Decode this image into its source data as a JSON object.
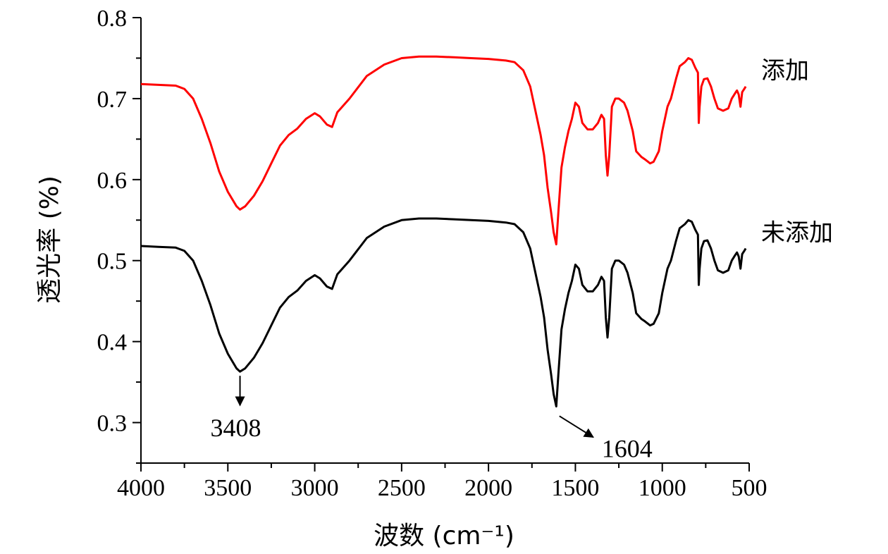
{
  "chart_data": {
    "type": "line",
    "title": "",
    "xlabel": "波数 (cm⁻¹)",
    "ylabel": "透光率 (%)",
    "xlim": [
      4000,
      500
    ],
    "ylim": [
      0.25,
      0.8
    ],
    "x_reversed": true,
    "grid": false,
    "legend": "inline-right",
    "x_ticks": [
      "4000",
      "3500",
      "3000",
      "2500",
      "2000",
      "1500",
      "1000",
      "500"
    ],
    "x_tick_values": [
      4000,
      3500,
      3000,
      2500,
      2000,
      1500,
      1000,
      500
    ],
    "y_ticks": [
      "0.3",
      "0.4",
      "0.5",
      "0.6",
      "0.7",
      "0.8"
    ],
    "y_tick_values": [
      0.3,
      0.4,
      0.5,
      0.6,
      0.7,
      0.8
    ],
    "series": [
      {
        "name": "添加",
        "color": "#ff0000",
        "points": [
          [
            4000,
            0.718
          ],
          [
            3900,
            0.717
          ],
          [
            3800,
            0.716
          ],
          [
            3750,
            0.712
          ],
          [
            3700,
            0.7
          ],
          [
            3650,
            0.675
          ],
          [
            3600,
            0.645
          ],
          [
            3550,
            0.61
          ],
          [
            3500,
            0.585
          ],
          [
            3450,
            0.567
          ],
          [
            3430,
            0.563
          ],
          [
            3400,
            0.567
          ],
          [
            3350,
            0.58
          ],
          [
            3300,
            0.598
          ],
          [
            3250,
            0.62
          ],
          [
            3200,
            0.642
          ],
          [
            3150,
            0.655
          ],
          [
            3100,
            0.663
          ],
          [
            3050,
            0.675
          ],
          [
            3000,
            0.682
          ],
          [
            2970,
            0.678
          ],
          [
            2930,
            0.668
          ],
          [
            2900,
            0.665
          ],
          [
            2870,
            0.683
          ],
          [
            2800,
            0.7
          ],
          [
            2700,
            0.728
          ],
          [
            2600,
            0.742
          ],
          [
            2500,
            0.75
          ],
          [
            2400,
            0.752
          ],
          [
            2300,
            0.752
          ],
          [
            2200,
            0.751
          ],
          [
            2100,
            0.75
          ],
          [
            2000,
            0.749
          ],
          [
            1900,
            0.747
          ],
          [
            1850,
            0.745
          ],
          [
            1800,
            0.735
          ],
          [
            1760,
            0.715
          ],
          [
            1730,
            0.685
          ],
          [
            1700,
            0.655
          ],
          [
            1680,
            0.63
          ],
          [
            1660,
            0.59
          ],
          [
            1640,
            0.56
          ],
          [
            1625,
            0.535
          ],
          [
            1610,
            0.52
          ],
          [
            1598,
            0.56
          ],
          [
            1580,
            0.615
          ],
          [
            1560,
            0.64
          ],
          [
            1540,
            0.66
          ],
          [
            1520,
            0.675
          ],
          [
            1500,
            0.695
          ],
          [
            1480,
            0.69
          ],
          [
            1460,
            0.67
          ],
          [
            1430,
            0.662
          ],
          [
            1400,
            0.662
          ],
          [
            1370,
            0.67
          ],
          [
            1350,
            0.68
          ],
          [
            1335,
            0.675
          ],
          [
            1325,
            0.63
          ],
          [
            1315,
            0.605
          ],
          [
            1305,
            0.63
          ],
          [
            1290,
            0.69
          ],
          [
            1270,
            0.7
          ],
          [
            1250,
            0.7
          ],
          [
            1220,
            0.695
          ],
          [
            1200,
            0.685
          ],
          [
            1170,
            0.66
          ],
          [
            1150,
            0.635
          ],
          [
            1120,
            0.628
          ],
          [
            1100,
            0.625
          ],
          [
            1070,
            0.62
          ],
          [
            1050,
            0.622
          ],
          [
            1020,
            0.635
          ],
          [
            1000,
            0.66
          ],
          [
            970,
            0.69
          ],
          [
            950,
            0.7
          ],
          [
            920,
            0.725
          ],
          [
            900,
            0.74
          ],
          [
            870,
            0.745
          ],
          [
            850,
            0.75
          ],
          [
            830,
            0.748
          ],
          [
            810,
            0.738
          ],
          [
            795,
            0.732
          ],
          [
            790,
            0.67
          ],
          [
            785,
            0.69
          ],
          [
            775,
            0.715
          ],
          [
            760,
            0.724
          ],
          [
            740,
            0.725
          ],
          [
            720,
            0.715
          ],
          [
            700,
            0.7
          ],
          [
            680,
            0.688
          ],
          [
            650,
            0.685
          ],
          [
            620,
            0.688
          ],
          [
            600,
            0.7
          ],
          [
            580,
            0.707
          ],
          [
            570,
            0.71
          ],
          [
            560,
            0.705
          ],
          [
            550,
            0.69
          ],
          [
            540,
            0.708
          ],
          [
            525,
            0.713
          ],
          [
            520,
            0.715
          ]
        ]
      },
      {
        "name": "未添加",
        "color": "#000000",
        "points": [
          [
            4000,
            0.518
          ],
          [
            3900,
            0.517
          ],
          [
            3800,
            0.516
          ],
          [
            3750,
            0.512
          ],
          [
            3700,
            0.5
          ],
          [
            3650,
            0.475
          ],
          [
            3600,
            0.445
          ],
          [
            3550,
            0.41
          ],
          [
            3500,
            0.385
          ],
          [
            3450,
            0.367
          ],
          [
            3430,
            0.363
          ],
          [
            3400,
            0.367
          ],
          [
            3350,
            0.38
          ],
          [
            3300,
            0.398
          ],
          [
            3250,
            0.42
          ],
          [
            3200,
            0.442
          ],
          [
            3150,
            0.455
          ],
          [
            3100,
            0.463
          ],
          [
            3050,
            0.475
          ],
          [
            3000,
            0.482
          ],
          [
            2970,
            0.478
          ],
          [
            2930,
            0.468
          ],
          [
            2900,
            0.465
          ],
          [
            2870,
            0.483
          ],
          [
            2800,
            0.5
          ],
          [
            2700,
            0.528
          ],
          [
            2600,
            0.542
          ],
          [
            2500,
            0.55
          ],
          [
            2400,
            0.552
          ],
          [
            2300,
            0.552
          ],
          [
            2200,
            0.551
          ],
          [
            2100,
            0.55
          ],
          [
            2000,
            0.549
          ],
          [
            1900,
            0.547
          ],
          [
            1850,
            0.545
          ],
          [
            1800,
            0.535
          ],
          [
            1760,
            0.515
          ],
          [
            1730,
            0.485
          ],
          [
            1700,
            0.455
          ],
          [
            1680,
            0.43
          ],
          [
            1660,
            0.39
          ],
          [
            1640,
            0.36
          ],
          [
            1625,
            0.335
          ],
          [
            1610,
            0.32
          ],
          [
            1598,
            0.36
          ],
          [
            1580,
            0.415
          ],
          [
            1560,
            0.44
          ],
          [
            1540,
            0.46
          ],
          [
            1520,
            0.475
          ],
          [
            1500,
            0.495
          ],
          [
            1480,
            0.49
          ],
          [
            1460,
            0.47
          ],
          [
            1430,
            0.462
          ],
          [
            1400,
            0.462
          ],
          [
            1370,
            0.47
          ],
          [
            1350,
            0.48
          ],
          [
            1335,
            0.475
          ],
          [
            1325,
            0.43
          ],
          [
            1315,
            0.405
          ],
          [
            1305,
            0.43
          ],
          [
            1290,
            0.49
          ],
          [
            1270,
            0.5
          ],
          [
            1250,
            0.5
          ],
          [
            1220,
            0.495
          ],
          [
            1200,
            0.485
          ],
          [
            1170,
            0.46
          ],
          [
            1150,
            0.435
          ],
          [
            1120,
            0.428
          ],
          [
            1100,
            0.425
          ],
          [
            1070,
            0.42
          ],
          [
            1050,
            0.422
          ],
          [
            1020,
            0.435
          ],
          [
            1000,
            0.46
          ],
          [
            970,
            0.49
          ],
          [
            950,
            0.5
          ],
          [
            920,
            0.525
          ],
          [
            900,
            0.54
          ],
          [
            870,
            0.545
          ],
          [
            850,
            0.55
          ],
          [
            830,
            0.548
          ],
          [
            810,
            0.538
          ],
          [
            795,
            0.532
          ],
          [
            790,
            0.47
          ],
          [
            785,
            0.49
          ],
          [
            775,
            0.515
          ],
          [
            760,
            0.524
          ],
          [
            740,
            0.525
          ],
          [
            720,
            0.515
          ],
          [
            700,
            0.5
          ],
          [
            680,
            0.488
          ],
          [
            650,
            0.485
          ],
          [
            620,
            0.488
          ],
          [
            600,
            0.5
          ],
          [
            580,
            0.507
          ],
          [
            570,
            0.51
          ],
          [
            560,
            0.505
          ],
          [
            550,
            0.49
          ],
          [
            540,
            0.508
          ],
          [
            525,
            0.513
          ],
          [
            520,
            0.515
          ]
        ]
      }
    ],
    "annotations": [
      {
        "label": "3408",
        "x": 3430,
        "y": 0.363,
        "arrow": "down"
      },
      {
        "label": "1604",
        "x": 1600,
        "y": 0.315,
        "arrow": "down-right"
      }
    ]
  }
}
